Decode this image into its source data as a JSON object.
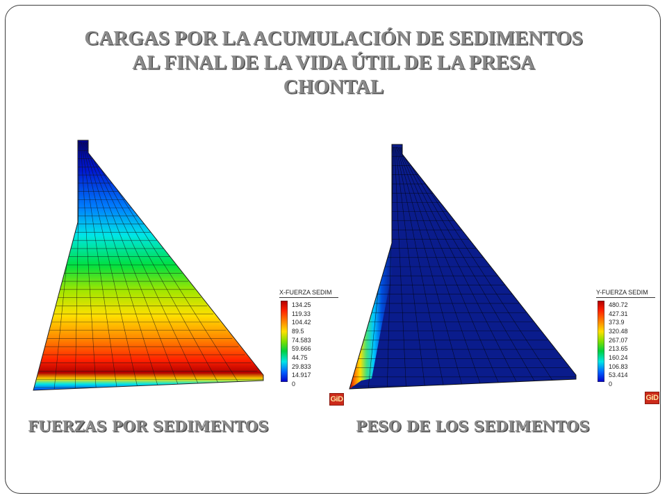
{
  "slide": {
    "title_lines": [
      "CARGAS POR LA ACUMULACIÓN DE SEDIMENTOS",
      "AL FINAL DE LA VIDA ÚTIL DE LA PRESA",
      "CHONTAL"
    ],
    "caption_left": "FUERZAS POR SEDIMENTOS",
    "caption_right": "PESO DE LOS SEDIMENTOS"
  },
  "legend_left": {
    "title": "X-FUERZA SEDIM",
    "values": [
      "134.25",
      "119.33",
      "104.42",
      "89.5",
      "74.583",
      "59.666",
      "44.75",
      "29.833",
      "14.917",
      "0"
    ]
  },
  "legend_right": {
    "title": "Y-FUERZA SEDIM",
    "values": [
      "480.72",
      "427.31",
      "373.9",
      "320.48",
      "267.07",
      "213.65",
      "160.24",
      "106.83",
      "53.414",
      "0"
    ]
  },
  "logo": {
    "text": "GiD"
  },
  "colors": {
    "title_text": "#8a8a8a",
    "title_shadow": "#4f4f4f",
    "contour_high": "#b00000",
    "contour_low": "#0000c8",
    "mesh_field": "#0a1c8c"
  }
}
